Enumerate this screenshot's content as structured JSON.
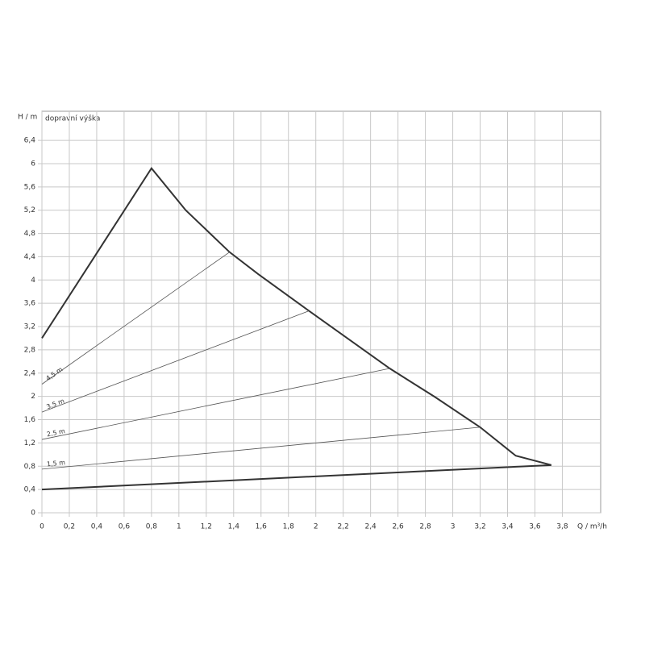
{
  "chart_data": {
    "type": "line",
    "y_label": "H / m",
    "x_label": "Q / m³/h",
    "annotation": "dopravní  výška",
    "xlim": [
      0,
      4.08
    ],
    "ylim": [
      0,
      6.9
    ],
    "grid": true,
    "xticks": [
      0,
      {
        "value": 0.2,
        "label": "0,2"
      },
      {
        "value": 0.4,
        "label": "0,4"
      },
      {
        "value": 0.6,
        "label": "0,6"
      },
      {
        "value": 0.8,
        "label": "0,8"
      },
      1,
      {
        "value": 1.2,
        "label": "1,2"
      },
      {
        "value": 1.4,
        "label": "1,4"
      },
      {
        "value": 1.6,
        "label": "1,6"
      },
      {
        "value": 1.8,
        "label": "1,8"
      },
      2,
      {
        "value": 2.2,
        "label": "2,2"
      },
      {
        "value": 2.4,
        "label": "2,4"
      },
      {
        "value": 2.6,
        "label": "2,6"
      },
      {
        "value": 2.8,
        "label": "2,8"
      },
      3,
      {
        "value": 3.2,
        "label": "3,2"
      },
      {
        "value": 3.4,
        "label": "3,4"
      },
      {
        "value": 3.6,
        "label": "3,6"
      },
      {
        "value": 3.8,
        "label": "3,8"
      }
    ],
    "yticks": [
      0,
      {
        "value": 0.4,
        "label": "0,4"
      },
      {
        "value": 0.8,
        "label": "0,8"
      },
      {
        "value": 1.2,
        "label": "1,2"
      },
      {
        "value": 1.6,
        "label": "1,6"
      },
      2,
      {
        "value": 2.4,
        "label": "2,4"
      },
      {
        "value": 2.8,
        "label": "2,8"
      },
      {
        "value": 3.2,
        "label": "3,2"
      },
      {
        "value": 3.6,
        "label": "3,6"
      },
      4,
      {
        "value": 4.4,
        "label": "4,4"
      },
      {
        "value": 4.8,
        "label": "4,8"
      },
      {
        "value": 5.2,
        "label": "5,2"
      },
      {
        "value": 5.6,
        "label": "5,6"
      },
      6,
      {
        "value": 6.4,
        "label": "6,4"
      }
    ],
    "series": [
      {
        "color": "#333333",
        "width": 2,
        "x": [
          0,
          0.8,
          1.05,
          1.37,
          1.58,
          1.95,
          2.54,
          2.87,
          3.2,
          3.46,
          3.72
        ],
        "values": [
          3.0,
          5.92,
          5.2,
          4.48,
          4.1,
          3.47,
          2.48,
          1.99,
          1.47,
          0.98,
          0.82
        ]
      },
      {
        "color": "#333333",
        "width": 2,
        "x": [
          0,
          3.72
        ],
        "values": [
          0.4,
          0.82
        ]
      },
      {
        "name": "4,5 m",
        "color": "#555555",
        "width": 0.8,
        "x": [
          0,
          1.37
        ],
        "values": [
          2.21,
          4.48
        ]
      },
      {
        "name": "3,5 m",
        "color": "#555555",
        "width": 0.8,
        "x": [
          0,
          1.95
        ],
        "values": [
          1.73,
          3.47
        ]
      },
      {
        "name": "2,5 m",
        "color": "#555555",
        "width": 0.8,
        "x": [
          0,
          2.54
        ],
        "values": [
          1.26,
          2.48
        ]
      },
      {
        "name": "1,5 m",
        "color": "#555555",
        "width": 0.8,
        "x": [
          0,
          3.2
        ],
        "values": [
          0.75,
          1.47
        ]
      }
    ]
  }
}
